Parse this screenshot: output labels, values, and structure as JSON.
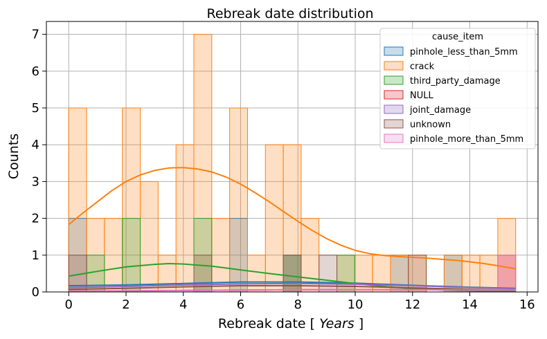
{
  "chart_data": {
    "type": "bar",
    "subtype": "histogram_with_kde",
    "title": "Rebreak date distribution",
    "xlabel_prefix": "Rebreak date [",
    "xlabel_unit": "Years",
    "xlabel_suffix": "]",
    "ylabel": "Counts",
    "xlim": [
      -0.78,
      16.38
    ],
    "ylim": [
      0,
      7.35
    ],
    "xticks": [
      0,
      2,
      4,
      6,
      8,
      10,
      12,
      14,
      16
    ],
    "yticks": [
      0,
      1,
      2,
      3,
      4,
      5,
      6,
      7
    ],
    "grid": true,
    "legend_title": "cause_item",
    "legend_position": "top-right",
    "bin_start": 0.0,
    "bin_width": 0.624,
    "bin_count": 25,
    "series": [
      {
        "name": "pinhole_less_than_5mm",
        "color": "#1f77b4",
        "counts": [
          2,
          0,
          0,
          0,
          0,
          0,
          0,
          0,
          0,
          2,
          0,
          0,
          1,
          0,
          0,
          0,
          0,
          0,
          1,
          0,
          0,
          1,
          0,
          0,
          0
        ],
        "kde_x": [
          0,
          2,
          4,
          6,
          8,
          10,
          12,
          14,
          15.6
        ],
        "kde_y": [
          0.17,
          0.19,
          0.23,
          0.27,
          0.27,
          0.24,
          0.18,
          0.13,
          0.1
        ]
      },
      {
        "name": "crack",
        "color": "#ff7f0e",
        "counts": [
          5,
          2,
          2,
          5,
          3,
          1,
          4,
          7,
          2,
          5,
          1,
          4,
          4,
          2,
          0,
          1,
          1,
          1,
          1,
          1,
          0,
          1,
          1,
          1,
          2
        ],
        "kde_x": [
          0,
          0.5,
          1,
          1.5,
          2,
          2.5,
          3,
          3.5,
          4,
          4.5,
          5,
          5.5,
          6,
          6.5,
          7,
          7.5,
          8,
          8.5,
          9,
          9.5,
          10,
          10.5,
          11,
          11.5,
          12,
          12.5,
          13,
          13.5,
          14,
          14.5,
          15,
          15.6
        ],
        "kde_y": [
          1.83,
          2.15,
          2.45,
          2.75,
          3.0,
          3.18,
          3.3,
          3.37,
          3.38,
          3.34,
          3.26,
          3.12,
          2.93,
          2.7,
          2.45,
          2.18,
          1.92,
          1.67,
          1.45,
          1.27,
          1.13,
          1.04,
          0.99,
          0.96,
          0.94,
          0.92,
          0.89,
          0.86,
          0.82,
          0.77,
          0.71,
          0.63
        ]
      },
      {
        "name": "third_party_damage",
        "color": "#2ca02c",
        "counts": [
          0,
          1,
          0,
          2,
          0,
          0,
          0,
          2,
          0,
          0,
          0,
          0,
          1,
          0,
          0,
          1,
          0,
          0,
          0,
          0,
          0,
          0,
          0,
          0,
          0
        ],
        "kde_x": [
          0,
          1,
          2,
          3,
          3.5,
          4,
          5,
          6,
          7,
          8,
          9,
          10,
          11,
          12,
          13,
          14,
          15.6
        ],
        "kde_y": [
          0.43,
          0.56,
          0.68,
          0.75,
          0.77,
          0.76,
          0.7,
          0.6,
          0.5,
          0.41,
          0.32,
          0.23,
          0.15,
          0.09,
          0.05,
          0.03,
          0.02
        ]
      },
      {
        "name": "NULL",
        "color": "#d62728",
        "counts": [
          0,
          0,
          0,
          0,
          0,
          0,
          0,
          0,
          0,
          0,
          0,
          0,
          0,
          0,
          0,
          0,
          0,
          0,
          0,
          0,
          0,
          0,
          0,
          0,
          1
        ],
        "kde_x": [
          0,
          2,
          4,
          6,
          8,
          10,
          12,
          14,
          15.6
        ],
        "kde_y": [
          0.02,
          0.03,
          0.04,
          0.05,
          0.06,
          0.06,
          0.06,
          0.06,
          0.05
        ]
      },
      {
        "name": "joint_damage",
        "color": "#9467bd",
        "counts": [
          0,
          0,
          0,
          0,
          0,
          0,
          0,
          0,
          0,
          0,
          0,
          0,
          0,
          0,
          0,
          0,
          0,
          0,
          0,
          0,
          0,
          0,
          0,
          0,
          0
        ],
        "kde_x": [
          0,
          2,
          4,
          6,
          8,
          10,
          12,
          14,
          15.6
        ],
        "kde_y": [
          0.12,
          0.15,
          0.19,
          0.22,
          0.23,
          0.21,
          0.17,
          0.12,
          0.09
        ]
      },
      {
        "name": "unknown",
        "color": "#8c564b",
        "counts": [
          1,
          0,
          0,
          0,
          0,
          0,
          0,
          1,
          0,
          0,
          0,
          0,
          1,
          0,
          1,
          0,
          0,
          0,
          0,
          1,
          0,
          0,
          0,
          0,
          0
        ],
        "kde_x": [
          0,
          2,
          4,
          6,
          8,
          10,
          12,
          14,
          15.6
        ],
        "kde_y": [
          0.07,
          0.1,
          0.14,
          0.17,
          0.17,
          0.15,
          0.11,
          0.07,
          0.05
        ]
      },
      {
        "name": "pinhole_more_than_5mm",
        "color": "#e377c2",
        "counts": [
          0,
          0,
          0,
          0,
          0,
          0,
          0,
          0,
          0,
          0,
          0,
          0,
          0,
          0,
          0,
          0,
          0,
          0,
          0,
          0,
          0,
          0,
          0,
          0,
          1
        ],
        "kde_x": [
          0,
          2,
          4,
          6,
          8,
          10,
          12,
          14,
          15.6
        ],
        "kde_y": [
          0.02,
          0.03,
          0.04,
          0.05,
          0.06,
          0.06,
          0.06,
          0.05,
          0.05
        ]
      }
    ]
  }
}
